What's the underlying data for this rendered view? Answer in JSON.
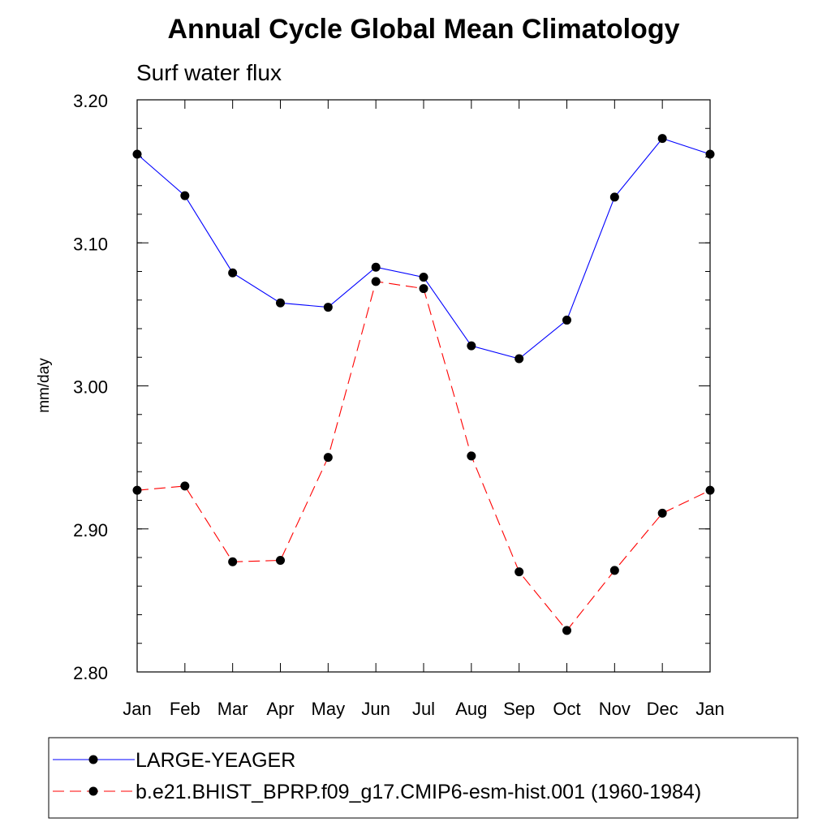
{
  "chart_data": {
    "type": "line",
    "title": "Annual Cycle Global Mean Climatology",
    "subtitle": "Surf water flux",
    "xlabel": "",
    "ylabel": "mm/day",
    "categories": [
      "Jan",
      "Feb",
      "Mar",
      "Apr",
      "May",
      "Jun",
      "Jul",
      "Aug",
      "Sep",
      "Oct",
      "Nov",
      "Dec",
      "Jan"
    ],
    "ylim": [
      2.8,
      3.2
    ],
    "yticks": [
      2.8,
      2.9,
      3.0,
      3.1,
      3.2
    ],
    "ytick_labels": [
      "2.80",
      "2.90",
      "3.00",
      "3.10",
      "3.20"
    ],
    "grid": false,
    "legend_position": "bottom",
    "series": [
      {
        "name": "LARGE-YEAGER",
        "color": "#0000ff",
        "line_style": "solid",
        "marker": "filled-circle",
        "values": [
          3.162,
          3.133,
          3.079,
          3.058,
          3.055,
          3.083,
          3.076,
          3.028,
          3.019,
          3.046,
          3.132,
          3.173,
          3.162
        ]
      },
      {
        "name": "b.e21.BHIST_BPRP.f09_g17.CMIP6-esm-hist.001 (1960-1984)",
        "color": "#ff0000",
        "line_style": "dashed",
        "marker": "filled-circle",
        "values": [
          2.927,
          2.93,
          2.877,
          2.878,
          2.95,
          3.073,
          3.068,
          2.951,
          2.87,
          2.829,
          2.871,
          2.911,
          2.927
        ]
      }
    ]
  }
}
